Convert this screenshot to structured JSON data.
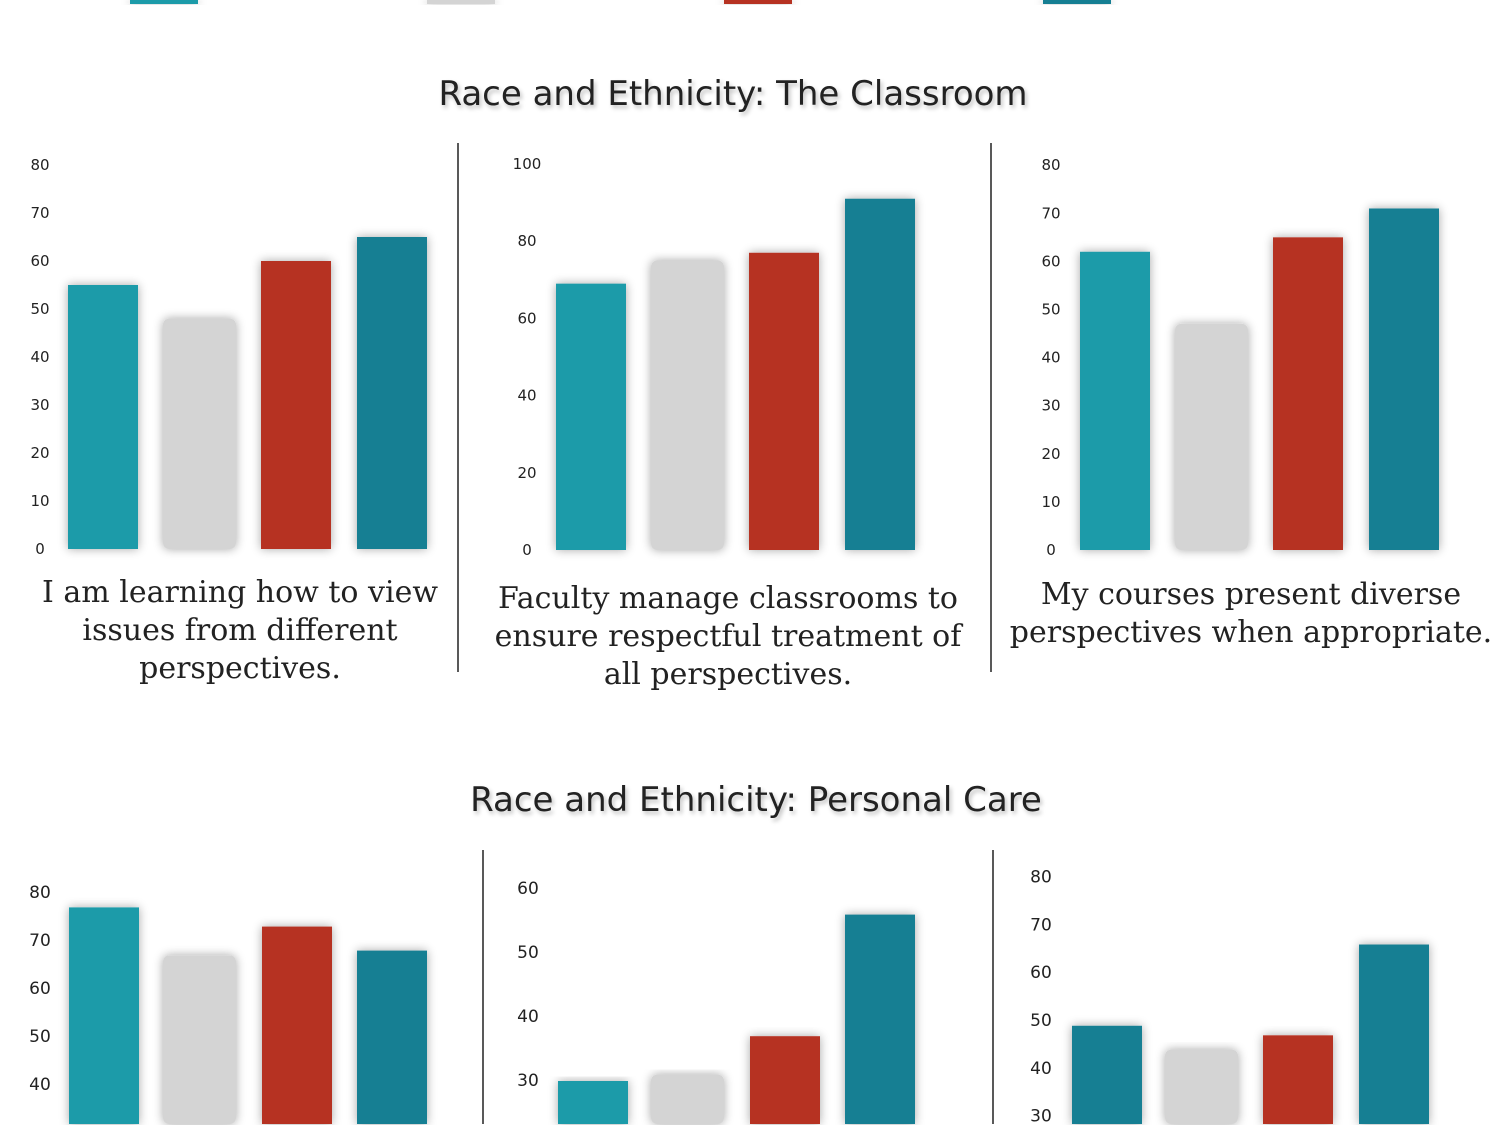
{
  "sections": [
    {
      "title": "Race and Ethnicity: The Classroom"
    },
    {
      "title": "Race and Ethnicity: Personal Care"
    }
  ],
  "captions": [
    "I am learning how to view issues from different perspectives.",
    "Faculty manage classrooms to ensure respectful treatment of all perspectives.",
    "My courses present diverse perspectives when appropriate."
  ],
  "legend_colors": [
    "#1f9ba9",
    "#d4d4d4",
    "#b63124",
    "#167f93"
  ],
  "chart_data": [
    {
      "type": "bar",
      "section": "Race and Ethnicity: The Classroom",
      "title": "I am learning how to view issues from different perspectives.",
      "ylim": [
        0,
        80
      ],
      "yticks": [
        0,
        10,
        20,
        30,
        40,
        50,
        60,
        70,
        80
      ],
      "grid": false,
      "series_colors": [
        "#1f9ba9",
        "#d4d4d4",
        "#b63124",
        "#167f93"
      ],
      "values": [
        55,
        48,
        60,
        65
      ]
    },
    {
      "type": "bar",
      "section": "Race and Ethnicity: The Classroom",
      "title": "Faculty manage classrooms to ensure respectful treatment of all perspectives.",
      "ylim": [
        0,
        100
      ],
      "yticks": [
        0,
        20,
        40,
        60,
        80,
        100
      ],
      "grid": false,
      "series_colors": [
        "#1f9ba9",
        "#d4d4d4",
        "#b63124",
        "#167f93"
      ],
      "values": [
        69,
        75,
        77,
        91
      ]
    },
    {
      "type": "bar",
      "section": "Race and Ethnicity: The Classroom",
      "title": "My courses present diverse perspectives when appropriate.",
      "ylim": [
        0,
        80
      ],
      "yticks": [
        0,
        10,
        20,
        30,
        40,
        50,
        60,
        70,
        80
      ],
      "grid": false,
      "series_colors": [
        "#1f9ba9",
        "#d4d4d4",
        "#b63124",
        "#167f93"
      ],
      "values": [
        62,
        47,
        65,
        71
      ]
    },
    {
      "type": "bar",
      "section": "Race and Ethnicity: Personal Care",
      "ylim": [
        0,
        80
      ],
      "yticks": [
        40,
        50,
        60,
        70,
        80
      ],
      "grid": false,
      "series_colors": [
        "#1f9ba9",
        "#d4d4d4",
        "#b63124",
        "#167f93"
      ],
      "values": [
        77,
        67,
        73,
        68
      ]
    },
    {
      "type": "bar",
      "section": "Race and Ethnicity: Personal Care",
      "ylim": [
        0,
        60
      ],
      "yticks": [
        30,
        40,
        50,
        60
      ],
      "grid": false,
      "series_colors": [
        "#1f9ba9",
        "#d4d4d4",
        "#b63124",
        "#167f93"
      ],
      "values": [
        30,
        31,
        37,
        56
      ]
    },
    {
      "type": "bar",
      "section": "Race and Ethnicity: Personal Care",
      "ylim": [
        0,
        80
      ],
      "yticks": [
        30,
        40,
        50,
        60,
        70,
        80
      ],
      "grid": false,
      "series_colors": [
        "#167f93",
        "#d4d4d4",
        "#b63124",
        "#167f93"
      ],
      "values": [
        49,
        44,
        47,
        66
      ]
    }
  ]
}
